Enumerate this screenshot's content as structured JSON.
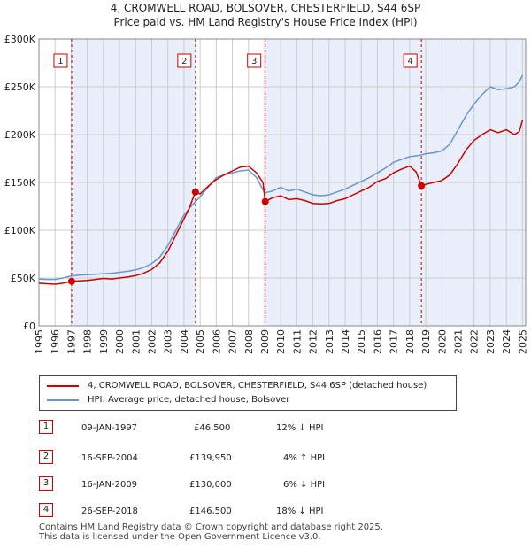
{
  "header": {
    "title_line1": "4, CROMWELL ROAD, BOLSOVER, CHESTERFIELD, S44 6SP",
    "title_line2": "Price paid vs. HM Land Registry's House Price Index (HPI)"
  },
  "colors": {
    "price_line": "#cc0000",
    "hpi_line": "#6a96cc",
    "shade": "#e8eefa",
    "grid": "#cccccc"
  },
  "chart_data": {
    "type": "line",
    "xlim": [
      1995,
      2025.2
    ],
    "ylim": [
      0,
      300000
    ],
    "x_ticks": [
      1995,
      1996,
      1997,
      1998,
      1999,
      2000,
      2001,
      2002,
      2003,
      2004,
      2005,
      2006,
      2007,
      2008,
      2009,
      2010,
      2011,
      2012,
      2013,
      2014,
      2015,
      2016,
      2017,
      2018,
      2019,
      2020,
      2021,
      2022,
      2023,
      2024,
      2025
    ],
    "y_ticks": [
      {
        "value": 0,
        "label": "£0"
      },
      {
        "value": 50000,
        "label": "£50K"
      },
      {
        "value": 100000,
        "label": "£100K"
      },
      {
        "value": 150000,
        "label": "£150K"
      },
      {
        "value": 200000,
        "label": "£200K"
      },
      {
        "value": 250000,
        "label": "£250K"
      },
      {
        "value": 300000,
        "label": "£300K"
      }
    ],
    "series": [
      {
        "name": "4, CROMWELL ROAD, BOLSOVER, CHESTERFIELD, S44 6SP (detached house)",
        "x": [
          1995,
          1995.5,
          1996,
          1996.5,
          1997.03,
          1997.5,
          1998,
          1998.5,
          1999,
          1999.5,
          2000,
          2000.5,
          2001,
          2001.5,
          2002,
          2002.5,
          2003,
          2003.5,
          2004,
          2004.3,
          2004.71,
          2005,
          2005.5,
          2006,
          2006.5,
          2007,
          2007.5,
          2008,
          2008.5,
          2008.9,
          2009.04,
          2009.5,
          2010,
          2010.5,
          2011,
          2011.5,
          2012,
          2012.5,
          2013,
          2013.5,
          2014,
          2014.5,
          2015,
          2015.5,
          2016,
          2016.5,
          2017,
          2017.5,
          2018,
          2018.4,
          2018.73,
          2019,
          2019.5,
          2020,
          2020.5,
          2021,
          2021.5,
          2022,
          2022.5,
          2023,
          2023.5,
          2024,
          2024.5,
          2024.8,
          2025
        ],
        "values": [
          44500,
          44000,
          43500,
          44500,
          46500,
          47000,
          47500,
          48500,
          49500,
          49000,
          50000,
          51000,
          52500,
          55000,
          59000,
          66000,
          78000,
          95000,
          112000,
          122000,
          139950,
          138000,
          146000,
          153000,
          158000,
          162000,
          166000,
          167000,
          160000,
          150000,
          130000,
          134000,
          136000,
          132000,
          133000,
          131000,
          128000,
          127500,
          128000,
          131000,
          133000,
          137000,
          141000,
          145000,
          151000,
          154000,
          160000,
          164000,
          167000,
          161000,
          146500,
          148000,
          150000,
          152000,
          158000,
          170000,
          184000,
          194000,
          200000,
          205000,
          202000,
          205000,
          200000,
          203000,
          215000
        ]
      },
      {
        "name": "HPI: Average price, detached house, Bolsover",
        "x": [
          1995,
          1995.5,
          1996,
          1996.5,
          1997,
          1997.5,
          1998,
          1998.5,
          1999,
          1999.5,
          2000,
          2000.5,
          2001,
          2001.5,
          2002,
          2002.5,
          2003,
          2003.5,
          2004,
          2004.5,
          2005,
          2005.5,
          2006,
          2006.5,
          2007,
          2007.5,
          2008,
          2008.5,
          2009,
          2009.5,
          2010,
          2010.5,
          2011,
          2011.5,
          2012,
          2012.5,
          2013,
          2013.5,
          2014,
          2014.5,
          2015,
          2015.5,
          2016,
          2016.5,
          2017,
          2017.5,
          2018,
          2018.5,
          2019,
          2019.5,
          2020,
          2020.5,
          2021,
          2021.5,
          2022,
          2022.5,
          2023,
          2023.5,
          2024,
          2024.5,
          2024.8,
          2025
        ],
        "values": [
          49000,
          48500,
          48500,
          50000,
          52000,
          53000,
          53500,
          54000,
          54500,
          55000,
          56000,
          57000,
          58500,
          61000,
          65000,
          72000,
          84000,
          100000,
          116000,
          126000,
          135000,
          145000,
          155000,
          158000,
          160000,
          162000,
          163000,
          155000,
          139000,
          141000,
          145000,
          141000,
          143000,
          140000,
          137000,
          136000,
          137000,
          140000,
          143000,
          147000,
          151000,
          155000,
          160000,
          165000,
          171000,
          174000,
          177000,
          178000,
          180000,
          181000,
          183000,
          190000,
          205000,
          220000,
          232000,
          242000,
          250000,
          247000,
          248000,
          250000,
          255000,
          262000
        ]
      }
    ],
    "sale_points": [
      {
        "label": "1",
        "x": 1997.03,
        "value": 46500
      },
      {
        "label": "2",
        "x": 2004.71,
        "value": 139950
      },
      {
        "label": "3",
        "x": 2009.04,
        "value": 130000
      },
      {
        "label": "4",
        "x": 2018.73,
        "value": 146500
      }
    ]
  },
  "legend": {
    "price_label": "4, CROMWELL ROAD, BOLSOVER, CHESTERFIELD, S44 6SP (detached house)",
    "hpi_label": "HPI: Average price, detached house, Bolsover"
  },
  "transactions": [
    {
      "num": "1",
      "date": "09-JAN-1997",
      "price": "£46,500",
      "hpi": "12% ↓ HPI"
    },
    {
      "num": "2",
      "date": "16-SEP-2004",
      "price": "£139,950",
      "hpi": "4% ↑ HPI"
    },
    {
      "num": "3",
      "date": "16-JAN-2009",
      "price": "£130,000",
      "hpi": "6% ↓ HPI"
    },
    {
      "num": "4",
      "date": "26-SEP-2018",
      "price": "£146,500",
      "hpi": "18% ↓ HPI"
    }
  ],
  "footer": {
    "line1": "Contains HM Land Registry data © Crown copyright and database right 2025.",
    "line2": "This data is licensed under the Open Government Licence v3.0."
  }
}
